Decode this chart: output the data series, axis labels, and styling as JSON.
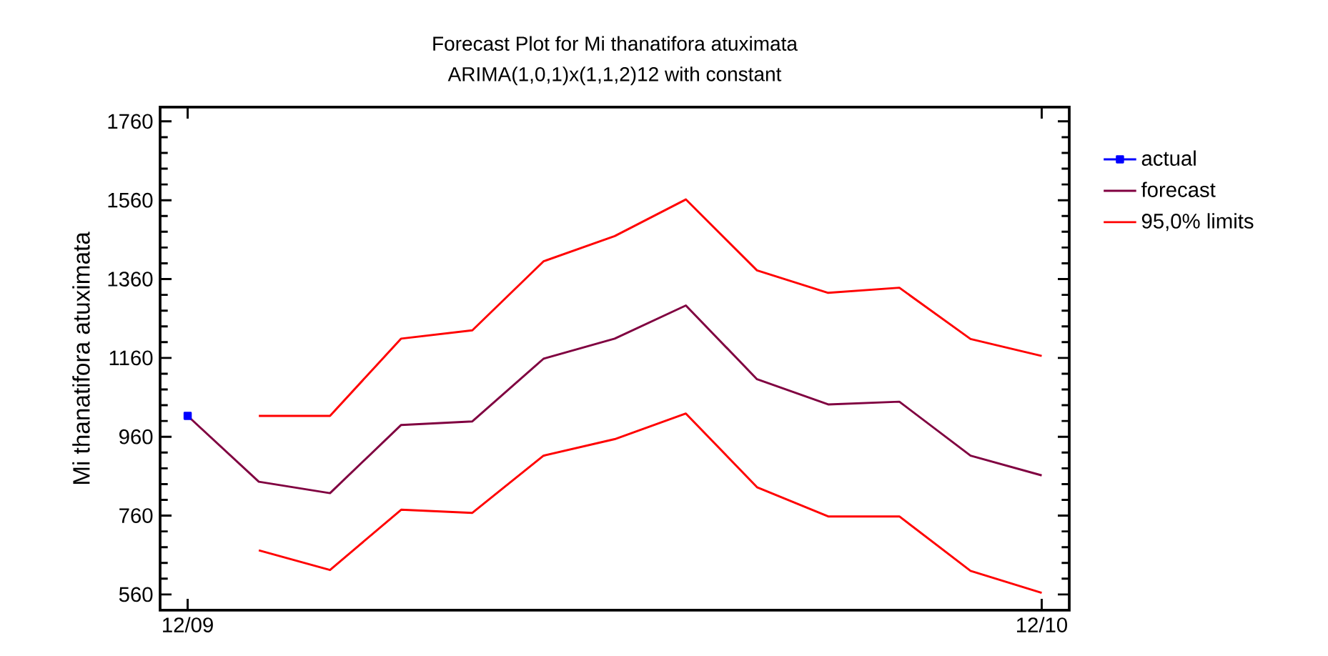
{
  "chart_data": {
    "type": "line",
    "title": "Forecast Plot for Mi thanatifora atuximata",
    "subtitle": "ARIMA(1,0,1)x(1,1,2)12 with constant",
    "ylabel": "Mi thanatifora atuximata",
    "xlim": [
      "2009-11-20",
      "2010-12-13"
    ],
    "xticks": [
      {
        "value": "2009-12",
        "label": "12/09"
      },
      {
        "value": "2010-12",
        "label": "12/10"
      }
    ],
    "ylim": [
      520,
      1796
    ],
    "yticks": [
      560,
      760,
      960,
      1160,
      1360,
      1560,
      1760
    ],
    "legend": "right",
    "grid": false,
    "series": [
      {
        "name": "actual",
        "color": "#0000ff",
        "marker": "square",
        "x": [
          "2009-12"
        ],
        "values": [
          1013
        ]
      },
      {
        "name": "forecast",
        "color": "#800040",
        "marker": "none",
        "x": [
          "2009-12",
          "2010-01",
          "2010-02",
          "2010-03",
          "2010-04",
          "2010-05",
          "2010-06",
          "2010-07",
          "2010-08",
          "2010-09",
          "2010-10",
          "2010-11",
          "2010-12"
        ],
        "values": [
          1013,
          846,
          817,
          990,
          999,
          1158,
          1209,
          1293,
          1106,
          1042,
          1049,
          912,
          862
        ]
      },
      {
        "name": "95,0% limits",
        "color": "#ff0000",
        "marker": "none",
        "x": [
          "2010-01",
          "2010-02",
          "2010-03",
          "2010-04",
          "2010-05",
          "2010-06",
          "2010-07",
          "2010-08",
          "2010-09",
          "2010-10",
          "2010-11",
          "2010-12"
        ],
        "values": [
          1013,
          1013,
          1209,
          1230,
          1405,
          1469,
          1562,
          1382,
          1325,
          1338,
          1208,
          1165
        ]
      },
      {
        "color": "#ff0000",
        "marker": "none",
        "x": [
          "2010-01",
          "2010-02",
          "2010-03",
          "2010-04",
          "2010-05",
          "2010-06",
          "2010-07",
          "2010-08",
          "2010-09",
          "2010-10",
          "2010-11",
          "2010-12"
        ],
        "values": [
          672,
          622,
          775,
          767,
          912,
          954,
          1019,
          832,
          758,
          758,
          620,
          564
        ]
      }
    ]
  }
}
